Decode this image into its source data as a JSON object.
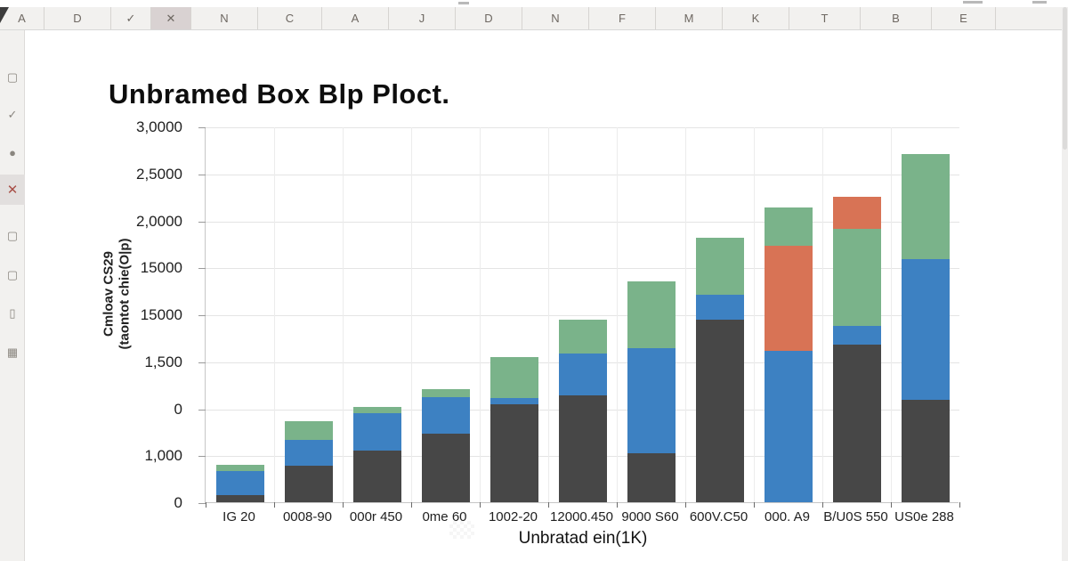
{
  "header": {
    "cells": [
      {
        "name": "column-header-a1",
        "label": "A"
      },
      {
        "name": "column-header-d1",
        "label": "D"
      },
      {
        "name": "accept-button",
        "label": "✓"
      },
      {
        "name": "cancel-button",
        "label": "✕",
        "selected": true
      },
      {
        "name": "column-header-n1",
        "label": "N"
      },
      {
        "name": "column-header-c",
        "label": "C"
      },
      {
        "name": "column-header-a2",
        "label": "A"
      },
      {
        "name": "column-header-j",
        "label": "J"
      },
      {
        "name": "column-header-d2",
        "label": "D"
      },
      {
        "name": "column-header-n2",
        "label": "N"
      },
      {
        "name": "column-header-f",
        "label": "F"
      },
      {
        "name": "column-header-m",
        "label": "M"
      },
      {
        "name": "column-header-k",
        "label": "K"
      },
      {
        "name": "column-header-t",
        "label": "T"
      },
      {
        "name": "column-header-b",
        "label": "B"
      },
      {
        "name": "column-header-e",
        "label": "E"
      }
    ]
  },
  "sidebar": {
    "icons": [
      {
        "name": "shape-icon",
        "glyph": "▢"
      },
      {
        "name": "check-icon",
        "glyph": "✓"
      },
      {
        "name": "circle-icon",
        "glyph": "●"
      },
      {
        "name": "close-icon",
        "glyph": "✕",
        "selected": true
      },
      {
        "name": "frame-icon",
        "glyph": "▢"
      },
      {
        "name": "square-icon",
        "glyph": "▢"
      },
      {
        "name": "panel-icon",
        "glyph": "▯"
      },
      {
        "name": "grid-icon",
        "glyph": "▦"
      }
    ]
  },
  "chart": {
    "title": "Unbramed Box Blp Ploct.",
    "y_axis": {
      "title_line1": "Cmloav CS29",
      "title_line2": "(taontot chie(O|p)",
      "tick_labels": [
        "3,0000",
        "2,5000",
        "2,0000",
        "15000",
        "15000",
        "1,500",
        "0",
        "1,000",
        "0"
      ]
    },
    "x_axis": {
      "title": "Unbratad ein(1K)",
      "labels": [
        "IG 20",
        "0008-90",
        "000r 450",
        "0me 60",
        "1002-20",
        "12000.450",
        "9000 S60",
        "600V.C50",
        "000. A9",
        "B/U0S 550",
        "US0e 288"
      ]
    }
  },
  "chart_data": {
    "type": "bar",
    "stacked": true,
    "title": "Unbramed Box Blp Ploct.",
    "xlabel": "Unbratad ein(1K)",
    "ylabel": "Cmloav CS29 (taontot chie(O|p)",
    "ylim": [
      0,
      3.0
    ],
    "grid": true,
    "legend": "none",
    "y_tick_labels": [
      "3,0000",
      "2,5000",
      "2,0000",
      "15000",
      "15000",
      "1,500",
      "0",
      "1,000",
      "0"
    ],
    "value_note": "values estimated from gridlines; one gridline interval = 0.5 axis units",
    "colors": {
      "dark": "#474747",
      "blue": "#3d81c2",
      "green": "#7ab38a",
      "red": "#d87355"
    },
    "categories": [
      "IG 20",
      "0008-90",
      "000r 450",
      "0me 60",
      "1002-20",
      "12000.450",
      "9000 S60",
      "600V.C50",
      "000. A9",
      "B/U0S 550",
      "US0e 288"
    ],
    "bars": [
      {
        "category": "IG 20",
        "segments": [
          {
            "name": "dark",
            "value": 0.06
          },
          {
            "name": "blue",
            "value": 0.19
          },
          {
            "name": "green",
            "value": 0.05
          }
        ]
      },
      {
        "category": "0008-90",
        "segments": [
          {
            "name": "dark",
            "value": 0.29
          },
          {
            "name": "blue",
            "value": 0.21
          },
          {
            "name": "green",
            "value": 0.15
          }
        ]
      },
      {
        "category": "000r 450",
        "segments": [
          {
            "name": "dark",
            "value": 0.41
          },
          {
            "name": "blue",
            "value": 0.3
          },
          {
            "name": "green",
            "value": 0.05
          }
        ]
      },
      {
        "category": "0me 60",
        "segments": [
          {
            "name": "dark",
            "value": 0.55
          },
          {
            "name": "blue",
            "value": 0.29
          },
          {
            "name": "green",
            "value": 0.06
          }
        ]
      },
      {
        "category": "1002-20",
        "segments": [
          {
            "name": "dark",
            "value": 0.78
          },
          {
            "name": "blue",
            "value": 0.05
          },
          {
            "name": "green",
            "value": 0.33
          }
        ]
      },
      {
        "category": "12000.450",
        "segments": [
          {
            "name": "dark",
            "value": 0.85
          },
          {
            "name": "blue",
            "value": 0.34
          },
          {
            "name": "green",
            "value": 0.27
          }
        ]
      },
      {
        "category": "9000 S60",
        "segments": [
          {
            "name": "dark",
            "value": 0.39
          },
          {
            "name": "blue",
            "value": 0.84
          },
          {
            "name": "green",
            "value": 0.53
          }
        ]
      },
      {
        "category": "600V.C50",
        "segments": [
          {
            "name": "dark",
            "value": 1.46
          },
          {
            "name": "blue",
            "value": 0.2
          },
          {
            "name": "green",
            "value": 0.45
          }
        ]
      },
      {
        "category": "000. A9",
        "segments": [
          {
            "name": "blue",
            "value": 1.21
          },
          {
            "name": "red",
            "value": 0.84
          },
          {
            "name": "green",
            "value": 0.3
          }
        ]
      },
      {
        "category": "B/U0S 550",
        "segments": [
          {
            "name": "dark",
            "value": 1.26
          },
          {
            "name": "blue",
            "value": 0.15
          },
          {
            "name": "green",
            "value": 0.77
          },
          {
            "name": "red",
            "value": 0.26
          }
        ]
      },
      {
        "category": "US0e 288",
        "segments": [
          {
            "name": "dark",
            "value": 0.82
          },
          {
            "name": "blue",
            "value": 1.12
          },
          {
            "name": "green",
            "value": 0.84
          }
        ]
      }
    ]
  }
}
